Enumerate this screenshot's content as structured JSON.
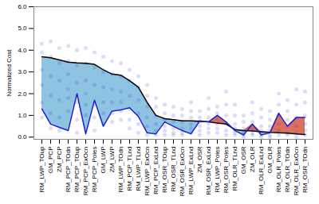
{
  "chart_data": {
    "type": "line",
    "y_label": "Normalized Cost",
    "categories": [
      "RM_LWP_TOup",
      "GM_PCP",
      "ZM_PCP",
      "RM_PCP_TOdn",
      "RM_PCP_TOup",
      "RM_PCP_ExOcn",
      "RM_PCP_Poles",
      "GM_LWP",
      "ZM_LWP",
      "RM_LWP_TOdn",
      "RM_PCP_TLnd",
      "RM_LWP_TLnd",
      "RM_LWP_ExOcn",
      "RM_PCP_ExLnd",
      "RM_OSR_TOup",
      "RM_OSR_TLnd",
      "RM_OSR_ExOcn",
      "RM_LWP_ExLnd",
      "ZM_OSR",
      "RM_OSR_ExLnd",
      "RM_LWP_Poles",
      "RM_OSR_Poles",
      "RM_OLR_TLnd",
      "GM_OSR",
      "ZM_OLR",
      "RM_OLR_ExLnd",
      "GM_OLR",
      "RM_OLR_Poles",
      "RM_OLR_TOdn",
      "RM_OLR_ExOcn",
      "RM_OSR_TOdn"
    ],
    "series": [
      {
        "type": "scatter",
        "color": "#3c3cdc",
        "marker": "circle",
        "values": [
          [
            4.3,
            3.9,
            3.1,
            2.4,
            1.6,
            0.9
          ],
          [
            4.4,
            3.7,
            2.8,
            1.9,
            1.1,
            0.4
          ],
          [
            4.1,
            3.4,
            2.6,
            1.7,
            0.9,
            0.3
          ],
          [
            4.2,
            3.5,
            2.9,
            2.2,
            1.8,
            1.2
          ],
          [
            4.0,
            3.3,
            2.5,
            1.6,
            0.8,
            0.2
          ],
          [
            4.1,
            3.4,
            2.6,
            2.0,
            1.5,
            1.0
          ],
          [
            3.9,
            3.2,
            2.4,
            1.5,
            0.9,
            0.3
          ],
          [
            3.7,
            3.0,
            2.3,
            1.6,
            1.1,
            0.6
          ],
          [
            3.5,
            2.9,
            2.2,
            1.6,
            1.1,
            0.7
          ],
          [
            3.4,
            2.8,
            2.1,
            1.6,
            1.2,
            0.8
          ],
          [
            3.1,
            2.6,
            1.9,
            1.3,
            0.8,
            0.4
          ],
          [
            2.8,
            2.3,
            1.7,
            1.1,
            0.6,
            0.2
          ],
          [
            2.4,
            1.9,
            1.4,
            0.9,
            0.5,
            0.1
          ],
          [
            1.8,
            1.4,
            1.0,
            0.6,
            0.3,
            0.1
          ],
          [
            1.5,
            1.1,
            0.8,
            0.5,
            0.3,
            0.1
          ],
          [
            1.4,
            1.0,
            0.7,
            0.4,
            0.2,
            0.1
          ],
          [
            1.3,
            1.0,
            0.7,
            0.4,
            0.2,
            0.1
          ],
          [
            1.6,
            1.2,
            0.9,
            0.6,
            0.4,
            0.2
          ],
          [
            1.2,
            0.9,
            0.7,
            0.5,
            0.3,
            0.1
          ],
          [
            1.8,
            1.3,
            0.9,
            0.6,
            0.4,
            0.2
          ],
          [
            1.4,
            1.1,
            0.8,
            0.6,
            0.4,
            0.2
          ],
          [
            2.1,
            1.5,
            1.0,
            0.6,
            0.3,
            0.1
          ],
          [
            1.5,
            1.0,
            0.6,
            0.4,
            0.2,
            0.1
          ],
          [
            1.0,
            0.7,
            0.4,
            0.2,
            0.1,
            0.0
          ],
          [
            1.6,
            1.1,
            0.7,
            0.4,
            0.2,
            0.1
          ],
          [
            1.3,
            0.9,
            0.5,
            0.3,
            0.1,
            0.0
          ],
          [
            1.2,
            0.8,
            0.5,
            0.3,
            0.1,
            0.0
          ],
          [
            2.0,
            1.5,
            1.0,
            0.6,
            0.3,
            0.1
          ],
          [
            1.7,
            1.2,
            0.8,
            0.5,
            0.2,
            0.1
          ],
          [
            2.2,
            1.5,
            0.9,
            0.5,
            0.2,
            0.0
          ],
          [
            2.1,
            1.6,
            1.0,
            0.6,
            0.3,
            0.1
          ]
        ]
      },
      {
        "type": "line",
        "color": "#000000",
        "values": [
          3.7,
          3.65,
          3.55,
          3.45,
          3.42,
          3.4,
          3.35,
          3.1,
          2.9,
          2.85,
          2.6,
          2.3,
          1.6,
          1.0,
          0.85,
          0.8,
          0.75,
          0.75,
          0.72,
          0.7,
          0.65,
          0.6,
          0.35,
          0.3,
          0.28,
          0.25,
          0.22,
          0.2,
          0.18,
          0.15,
          0.12
        ]
      },
      {
        "type": "line",
        "color": "#1f1fcc",
        "values": [
          1.3,
          0.6,
          0.45,
          0.3,
          2.0,
          0.15,
          1.7,
          0.5,
          1.2,
          1.25,
          1.35,
          0.95,
          0.2,
          0.15,
          0.7,
          0.5,
          0.3,
          0.15,
          0.75,
          0.7,
          1.0,
          0.7,
          0.3,
          0.1,
          0.6,
          0.1,
          0.2,
          1.1,
          0.5,
          0.9,
          0.9
        ]
      }
    ],
    "ylim": [
      -0.1,
      6.0
    ],
    "yticks": [
      {
        "value": 0,
        "label": "0.0"
      },
      {
        "value": 1,
        "label": "1.0"
      },
      {
        "value": 2,
        "label": "2.0"
      },
      {
        "value": 3,
        "label": "3.0"
      },
      {
        "value": 4,
        "label": "4.0"
      },
      {
        "value": 5,
        "label": "5.0"
      },
      {
        "value": 6,
        "label": "6.0"
      }
    ],
    "grid": false
  }
}
